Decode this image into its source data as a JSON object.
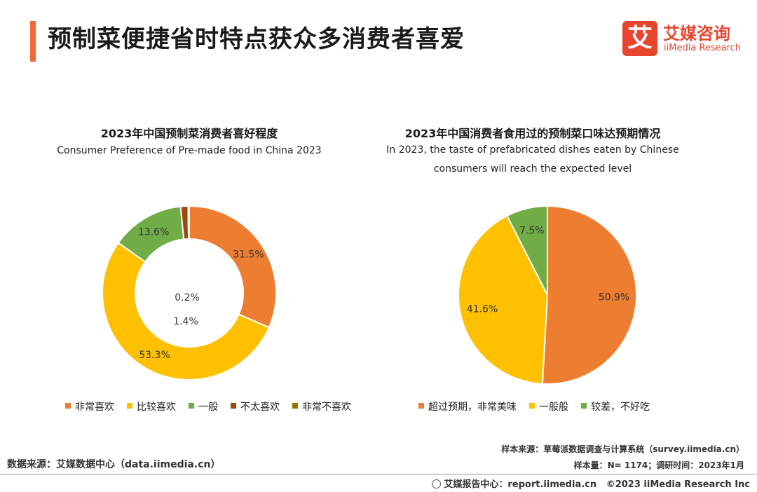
{
  "header": {
    "title": "预制菜便捷省时特点获众多消费者喜爱",
    "accent_color": "#ef6a3c"
  },
  "logo": {
    "mark": "艾",
    "name_cn": "艾媒咨询",
    "name_en": "iiMedia Research",
    "color": "#e8452e"
  },
  "chart_data": [
    {
      "type": "pie",
      "variant": "donut",
      "title": "2023年中国预制菜消费者喜好程度",
      "subtitle": "Consumer Preference of Pre-made food in China 2023",
      "unit": "%",
      "categories": [
        "非常喜欢",
        "比较喜欢",
        "一般",
        "不太喜欢",
        "非常不喜欢"
      ],
      "values": [
        31.5,
        53.3,
        13.6,
        1.4,
        0.2
      ],
      "labels": [
        "31.5%",
        "53.3%",
        "13.6%",
        "1.4%",
        "0.2%"
      ],
      "colors": [
        "#ed7d31",
        "#ffc000",
        "#70ad47",
        "#9e480e",
        "#997300"
      ],
      "legend_position": "bottom"
    },
    {
      "type": "pie",
      "title": "2023年中国消费者食用过的预制菜口味达预期情况",
      "subtitle_lines": [
        "In 2023, the taste of prefabricated dishes eaten by Chinese",
        "consumers will reach the expected level"
      ],
      "unit": "%",
      "categories": [
        "超过预期，非常美味",
        "一般般",
        "较差，不好吃"
      ],
      "values": [
        50.9,
        41.6,
        7.5
      ],
      "labels": [
        "50.9%",
        "41.6%",
        "7.5%"
      ],
      "colors": [
        "#ed7d31",
        "#ffc000",
        "#70ad47"
      ],
      "legend_position": "bottom"
    }
  ],
  "footer": {
    "source": "数据来源：艾媒数据中心（data.iimedia.cn）",
    "sample_source": "样本来源：草莓派数据调查与计算系统（survey.iimedia.cn）",
    "sample_size": "样本量：N= 1174；调研时间：2023年1月",
    "report_center": "艾媒报告中心：report.iimedia.cn",
    "copyright": "©2023  iiMedia Research  Inc"
  }
}
